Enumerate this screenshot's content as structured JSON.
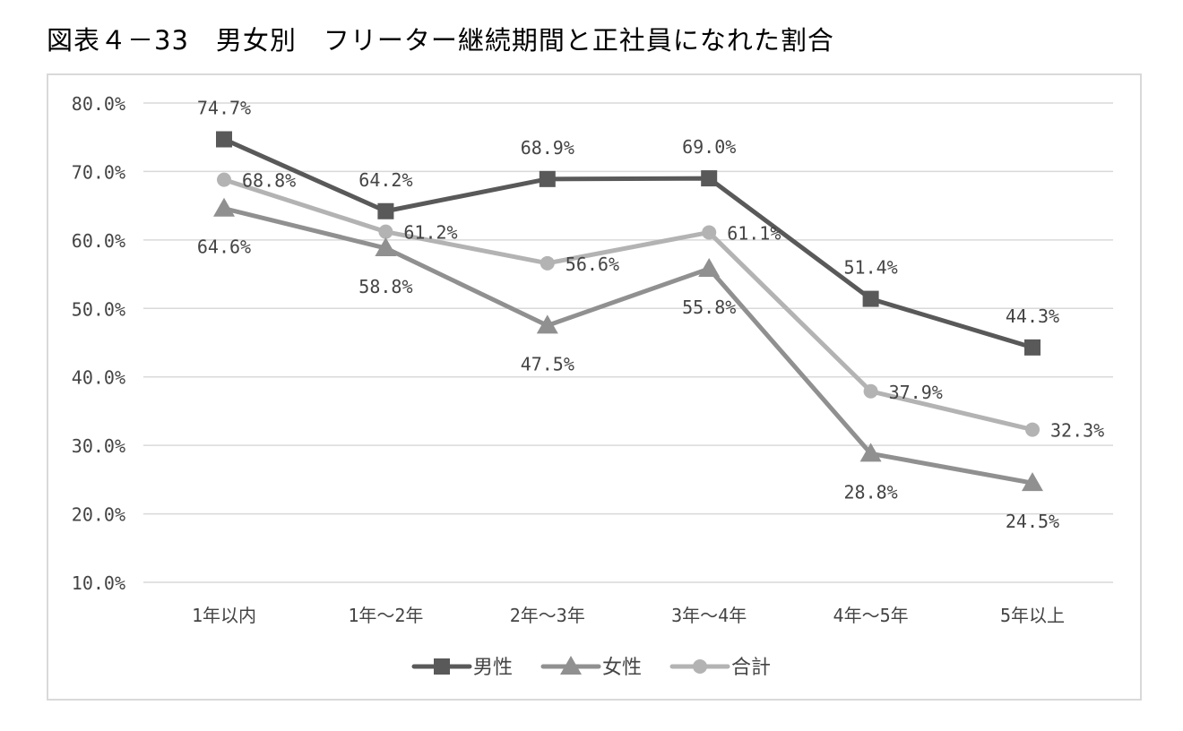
{
  "title": "図表４－33　男女別　フリーター継続期間と正社員になれた割合",
  "chart_data": {
    "type": "line",
    "title": "図表４－33　男女別　フリーター継続期間と正社員になれた割合",
    "categories": [
      "1年以内",
      "1年～2年",
      "2年～3年",
      "3年～4年",
      "4年～5年",
      "5年以上"
    ],
    "ylim": [
      10,
      80
    ],
    "yticks": [
      "10.0%",
      "20.0%",
      "30.0%",
      "40.0%",
      "50.0%",
      "60.0%",
      "70.0%",
      "80.0%"
    ],
    "grid": true,
    "legend": "bottom",
    "series": [
      {
        "name": "男性",
        "marker": "square",
        "color": "#595959",
        "values": [
          74.7,
          64.2,
          68.9,
          69.0,
          51.4,
          44.3
        ],
        "labels": [
          "74.7%",
          "64.2%",
          "68.9%",
          "69.0%",
          "51.4%",
          "44.3%"
        ]
      },
      {
        "name": "女性",
        "marker": "triangle",
        "color": "#909090",
        "values": [
          64.6,
          58.8,
          47.5,
          55.8,
          28.8,
          24.5
        ],
        "labels": [
          "64.6%",
          "58.8%",
          "47.5%",
          "55.8%",
          "28.8%",
          "24.5%"
        ]
      },
      {
        "name": "合計",
        "marker": "circle",
        "color": "#b3b3b3",
        "values": [
          68.8,
          61.2,
          56.6,
          61.1,
          37.9,
          32.3
        ],
        "labels": [
          "68.8%",
          "61.2%",
          "56.6%",
          "61.1%",
          "37.9%",
          "32.3%"
        ]
      }
    ]
  }
}
